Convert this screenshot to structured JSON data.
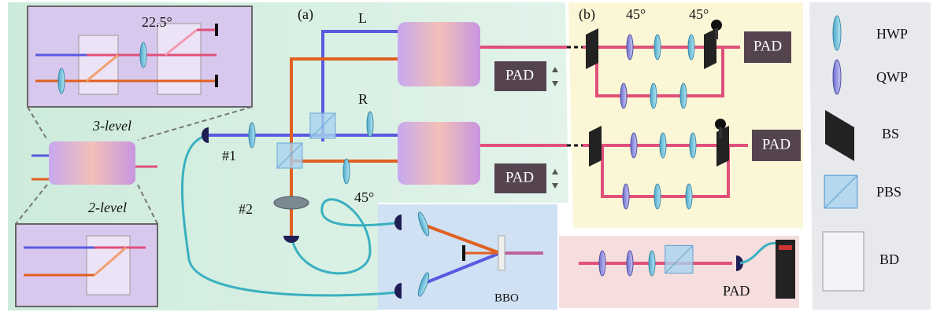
{
  "panel_a": {
    "label": "(a)",
    "hwp_angle": "22.5°",
    "beam_l": "L",
    "beam_r": "R",
    "port_1": "#1",
    "port_2": "#2",
    "angle_45": "45°",
    "pad_top": "PAD",
    "pad_bottom": "PAD",
    "three_level": "3-level",
    "two_level": "2-level",
    "crystal": "BBO"
  },
  "panel_b": {
    "label": "(b)",
    "angle_1": "45°",
    "angle_2": "45°",
    "pad_top": "PAD",
    "pad_bottom": "PAD"
  },
  "source": {
    "pad": "PAD"
  },
  "legend": {
    "items": [
      "HWP",
      "QWP",
      "BS",
      "PBS",
      "BD"
    ]
  }
}
